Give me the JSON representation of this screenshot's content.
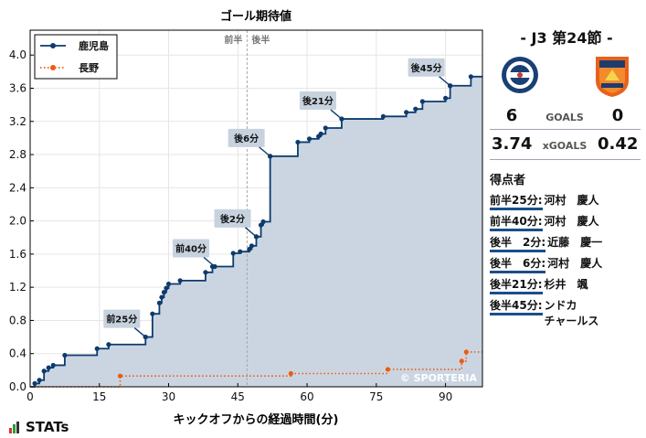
{
  "chart_data": {
    "type": "line",
    "title": "ゴール期待値",
    "xlabel": "キックオフからの経過時間(分)",
    "ylabel": "",
    "xlim": [
      0,
      98
    ],
    "ylim": [
      0,
      4.3
    ],
    "xticks": [
      0,
      15,
      30,
      45,
      60,
      75,
      90
    ],
    "yticks": [
      0.0,
      0.4,
      0.8,
      1.2,
      1.6,
      2.0,
      2.4,
      2.8,
      3.2,
      3.6,
      4.0
    ],
    "ytick_labels": [
      "0.0",
      "0.4",
      "0.8",
      "1.2",
      "1.6",
      "2.0",
      "2.4",
      "2.8",
      "3.2",
      "3.6",
      "4.0"
    ],
    "halftime_x": 47,
    "half_labels": [
      "前半",
      "後半"
    ],
    "legend_position": "top-left",
    "watermark": "© SPORTERIA",
    "series": [
      {
        "name": "鹿児島",
        "color": "#0d3b6e",
        "fill": "#c8d3df",
        "style": "solid-step",
        "points": [
          [
            0,
            0
          ],
          [
            1,
            0.04
          ],
          [
            2,
            0.08
          ],
          [
            3,
            0.19
          ],
          [
            4,
            0.23
          ],
          [
            5,
            0.26
          ],
          [
            7.5,
            0.38
          ],
          [
            14.5,
            0.46
          ],
          [
            17,
            0.51
          ],
          [
            25,
            0.6
          ],
          [
            26.5,
            0.88
          ],
          [
            28,
            1.01
          ],
          [
            28.5,
            1.08
          ],
          [
            29,
            1.14
          ],
          [
            29.5,
            1.19
          ],
          [
            30,
            1.24
          ],
          [
            32.5,
            1.28
          ],
          [
            38,
            1.38
          ],
          [
            39.5,
            1.45
          ],
          [
            44,
            1.61
          ],
          [
            45.5,
            1.63
          ],
          [
            47.5,
            1.66
          ],
          [
            48,
            1.7
          ],
          [
            49,
            1.81
          ],
          [
            50,
            1.95
          ],
          [
            50.5,
            1.99
          ],
          [
            52,
            2.78
          ],
          [
            58,
            2.95
          ],
          [
            60.5,
            2.99
          ],
          [
            62.5,
            3.02
          ],
          [
            63,
            3.05
          ],
          [
            64,
            3.12
          ],
          [
            67.5,
            3.23
          ],
          [
            76.5,
            3.26
          ],
          [
            81.5,
            3.31
          ],
          [
            83.5,
            3.35
          ],
          [
            85,
            3.44
          ],
          [
            90,
            3.48
          ],
          [
            91,
            3.63
          ],
          [
            95.5,
            3.74
          ],
          [
            98,
            3.74
          ]
        ]
      },
      {
        "name": "長野",
        "color": "#ee5a10",
        "fill": "none",
        "style": "dotted-step",
        "points": [
          [
            0,
            0
          ],
          [
            19.5,
            0.13
          ],
          [
            56.5,
            0.16
          ],
          [
            77.5,
            0.21
          ],
          [
            93.5,
            0.31
          ],
          [
            94.5,
            0.42
          ],
          [
            98,
            0.42
          ]
        ]
      }
    ],
    "annotations": [
      {
        "label": "前25分",
        "x": 25,
        "y": 0.6
      },
      {
        "label": "前40分",
        "x": 40,
        "y": 1.45
      },
      {
        "label": "後2分",
        "x": 49,
        "y": 1.81
      },
      {
        "label": "後6分",
        "x": 52,
        "y": 2.78
      },
      {
        "label": "後21分",
        "x": 67.5,
        "y": 3.23
      },
      {
        "label": "後45分",
        "x": 91,
        "y": 3.63
      }
    ]
  },
  "match": {
    "title": "- J3 第24節 -",
    "home_score": "6",
    "away_score": "0",
    "goals_label": "GOALS",
    "home_xg": "3.74",
    "away_xg": "0.42",
    "xg_label": "xGOALS",
    "home_color": "#0d3b6e",
    "away_color": "#e8621a"
  },
  "scorers": {
    "title": "得点者",
    "list": [
      {
        "time": "前半25分:",
        "name": "河村　慶人"
      },
      {
        "time": "前半40分:",
        "name": "河村　慶人"
      },
      {
        "time": "後半　2分:",
        "name": "近藤　慶一"
      },
      {
        "time": "後半　6分:",
        "name": "河村　慶人"
      },
      {
        "time": "後半21分:",
        "name": "杉井　颯"
      },
      {
        "time": "後半45分:",
        "name": "ンドカ\nチャールス"
      }
    ]
  },
  "brand": {
    "label": "STATs"
  }
}
